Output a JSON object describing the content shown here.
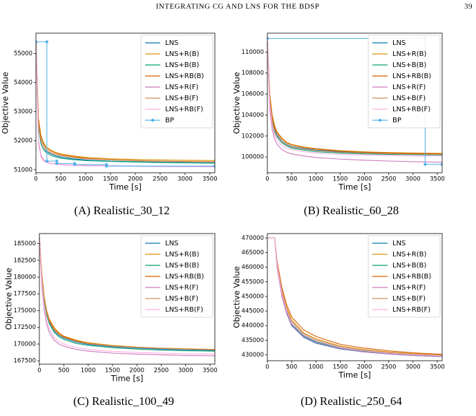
{
  "header": {
    "running_title": "INTEGRATING CG AND LNS FOR THE BDSP",
    "page_number": "39"
  },
  "chart_data": [
    {
      "type": "line",
      "caption": "(A) Realistic_30_12",
      "xlabel": "Time [s]",
      "ylabel": "Objective Value",
      "legend": "upper right",
      "xlim": [
        0,
        3600
      ],
      "xticks": [
        0,
        500,
        1000,
        1500,
        2000,
        2500,
        3000,
        3500
      ],
      "ylim": [
        50900,
        55700
      ],
      "yticks": [
        51000,
        52000,
        53000,
        54000,
        55000
      ],
      "x": [
        0,
        50,
        100,
        150,
        200,
        300,
        400,
        500,
        750,
        1000,
        1500,
        2000,
        2500,
        3000,
        3600
      ],
      "series": [
        {
          "name": "LNS",
          "color": "#0173b2",
          "values": [
            55400,
            52600,
            52000,
            51800,
            51650,
            51550,
            51480,
            51440,
            51380,
            51340,
            51300,
            51280,
            51260,
            51250,
            51240
          ]
        },
        {
          "name": "LNS+R(B)",
          "color": "#de8f05",
          "values": [
            55400,
            52800,
            52200,
            51950,
            51800,
            51680,
            51600,
            51550,
            51480,
            51430,
            51380,
            51360,
            51340,
            51330,
            51320
          ]
        },
        {
          "name": "LNS+B(B)",
          "color": "#029e73",
          "values": [
            55400,
            52500,
            51900,
            51700,
            51600,
            51500,
            51440,
            51400,
            51350,
            51320,
            51290,
            51270,
            51250,
            51240,
            51230
          ]
        },
        {
          "name": "LNS+RB(B)",
          "color": "#d55e00",
          "values": [
            55400,
            52700,
            52100,
            51900,
            51750,
            51640,
            51570,
            51520,
            51450,
            51400,
            51350,
            51320,
            51300,
            51290,
            51280
          ]
        },
        {
          "name": "LNS+R(F)",
          "color": "#cc78bc",
          "values": [
            55400,
            52000,
            51500,
            51350,
            51280,
            51220,
            51200,
            51180,
            51160,
            51150,
            51140,
            51130,
            51120,
            51115,
            51110
          ]
        },
        {
          "name": "LNS+B(F)",
          "color": "#ca9161",
          "values": [
            55400,
            52600,
            52000,
            51800,
            51680,
            51580,
            51520,
            51480,
            51420,
            51380,
            51340,
            51310,
            51290,
            51280,
            51270
          ]
        },
        {
          "name": "LNS+RB(F)",
          "color": "#fbafe4",
          "values": [
            55400,
            51900,
            51450,
            51320,
            51260,
            51210,
            51190,
            51170,
            51150,
            51140,
            51130,
            51120,
            51110,
            51105,
            51100
          ]
        },
        {
          "name": "BP",
          "color": "#56b4e9",
          "marker": true,
          "x": [
            0,
            220,
            220,
            420,
            420,
            780,
            780,
            1420,
            1420,
            3600
          ],
          "values": [
            55400,
            55400,
            51300,
            51300,
            51220,
            51220,
            51180,
            51180,
            51130,
            51130
          ]
        }
      ]
    },
    {
      "type": "line",
      "caption": "(B) Realistic_60_28",
      "xlabel": "Time [s]",
      "ylabel": "Objective Value",
      "legend": "upper right",
      "xlim": [
        0,
        3600
      ],
      "xticks": [
        0,
        500,
        1000,
        1500,
        2000,
        2500,
        3000,
        3500
      ],
      "ylim": [
        98500,
        111800
      ],
      "yticks": [
        100000,
        102000,
        104000,
        106000,
        108000,
        110000
      ],
      "x": [
        0,
        50,
        100,
        150,
        200,
        300,
        400,
        500,
        750,
        1000,
        1500,
        2000,
        2500,
        3000,
        3600
      ],
      "series": [
        {
          "name": "LNS",
          "color": "#0173b2",
          "values": [
            111000,
            105500,
            103500,
            102600,
            102100,
            101500,
            101200,
            101000,
            100800,
            100650,
            100500,
            100420,
            100360,
            100320,
            100300
          ]
        },
        {
          "name": "LNS+R(B)",
          "color": "#de8f05",
          "values": [
            111000,
            106000,
            104000,
            103000,
            102400,
            101800,
            101400,
            101200,
            100950,
            100800,
            100600,
            100500,
            100420,
            100380,
            100350
          ]
        },
        {
          "name": "LNS+B(B)",
          "color": "#029e73",
          "values": [
            111000,
            105200,
            103300,
            102400,
            101900,
            101350,
            101050,
            100850,
            100650,
            100500,
            100380,
            100300,
            100250,
            100220,
            100200
          ]
        },
        {
          "name": "LNS+RB(B)",
          "color": "#d55e00",
          "values": [
            111000,
            105800,
            103800,
            102800,
            102300,
            101700,
            101350,
            101150,
            100900,
            100750,
            100550,
            100450,
            100380,
            100340,
            100300
          ]
        },
        {
          "name": "LNS+R(F)",
          "color": "#cc78bc",
          "values": [
            111000,
            104500,
            102600,
            101700,
            101200,
            100700,
            100450,
            100300,
            100100,
            99950,
            99800,
            99700,
            99620,
            99560,
            99500
          ]
        },
        {
          "name": "LNS+B(F)",
          "color": "#ca9161",
          "values": [
            111000,
            105400,
            103400,
            102500,
            102000,
            101450,
            101150,
            100950,
            100750,
            100600,
            100450,
            100370,
            100310,
            100270,
            100250
          ]
        },
        {
          "name": "LNS+RB(F)",
          "color": "#fbafe4",
          "values": [
            111000,
            105000,
            103000,
            102100,
            101600,
            101100,
            100850,
            100700,
            100500,
            100380,
            100260,
            100190,
            100140,
            100110,
            100100
          ]
        },
        {
          "name": "BP",
          "color": "#56b4e9",
          "marker": true,
          "x": [
            0,
            3250,
            3250,
            3600
          ],
          "values": [
            111300,
            111300,
            99300,
            99300
          ]
        }
      ]
    },
    {
      "type": "line",
      "caption": "(C) Realistic_100_49",
      "xlabel": "Time [s]",
      "ylabel": "Objective Value",
      "legend": "upper right",
      "xlim": [
        0,
        3600
      ],
      "xticks": [
        0,
        500,
        1000,
        1500,
        2000,
        2500,
        3000,
        3500
      ],
      "ylim": [
        167000,
        186500
      ],
      "yticks": [
        167500,
        170000,
        172500,
        175000,
        177500,
        180000,
        182500,
        185000
      ],
      "x": [
        0,
        50,
        100,
        150,
        200,
        300,
        400,
        500,
        750,
        1000,
        1500,
        2000,
        2500,
        3000,
        3600
      ],
      "series": [
        {
          "name": "LNS",
          "color": "#0173b2",
          "values": [
            186000,
            180000,
            176500,
            174500,
            173300,
            172000,
            171300,
            170900,
            170300,
            169950,
            169600,
            169400,
            169250,
            169150,
            169050
          ]
        },
        {
          "name": "LNS+R(B)",
          "color": "#de8f05",
          "values": [
            186000,
            180500,
            177000,
            175000,
            173800,
            172500,
            171700,
            171200,
            170600,
            170200,
            169800,
            169550,
            169400,
            169300,
            169200
          ]
        },
        {
          "name": "LNS+B(B)",
          "color": "#029e73",
          "values": [
            186000,
            179800,
            176300,
            174300,
            173100,
            171800,
            171100,
            170700,
            170100,
            169800,
            169450,
            169250,
            169100,
            169000,
            168950
          ]
        },
        {
          "name": "LNS+RB(B)",
          "color": "#d55e00",
          "values": [
            186000,
            180300,
            176800,
            174800,
            173600,
            172300,
            171600,
            171100,
            170500,
            170100,
            169700,
            169500,
            169350,
            169250,
            169150
          ]
        },
        {
          "name": "LNS+R(F)",
          "color": "#cc78bc",
          "values": [
            186000,
            178500,
            175000,
            173000,
            171800,
            170600,
            170000,
            169700,
            169200,
            168950,
            168650,
            168500,
            168400,
            168300,
            168250
          ]
        },
        {
          "name": "LNS+B(F)",
          "color": "#ca9161",
          "values": [
            186000,
            180000,
            176600,
            174600,
            173400,
            172100,
            171400,
            171000,
            170400,
            170050,
            169700,
            169500,
            169350,
            169250,
            169150
          ]
        },
        {
          "name": "LNS+RB(F)",
          "color": "#fbafe4",
          "values": [
            186000,
            179000,
            175500,
            173500,
            172300,
            171000,
            170400,
            170000,
            169500,
            169200,
            168900,
            168750,
            168650,
            168550,
            168500
          ]
        }
      ]
    },
    {
      "type": "line",
      "caption": "(D) Realistic_250_64",
      "xlabel": "Time [s]",
      "ylabel": "Objective Value",
      "legend": "upper right",
      "xlim": [
        0,
        3600
      ],
      "xticks": [
        0,
        500,
        1000,
        1500,
        2000,
        2500,
        3000,
        3500
      ],
      "ylim": [
        428000,
        471500
      ],
      "yticks": [
        430000,
        435000,
        440000,
        445000,
        450000,
        455000,
        460000,
        465000,
        470000
      ],
      "x": [
        0,
        50,
        100,
        150,
        200,
        300,
        400,
        500,
        750,
        1000,
        1500,
        2000,
        2500,
        3000,
        3600
      ],
      "series": [
        {
          "name": "LNS",
          "color": "#0173b2",
          "values": [
            470000,
            470000,
            470000,
            470000,
            460000,
            450000,
            444000,
            440000,
            436000,
            434000,
            432000,
            431000,
            430300,
            429800,
            429400
          ]
        },
        {
          "name": "LNS+R(B)",
          "color": "#de8f05",
          "values": [
            470000,
            470000,
            470000,
            470000,
            461500,
            452000,
            446000,
            442000,
            437500,
            435500,
            433000,
            431800,
            431000,
            430400,
            430000
          ]
        },
        {
          "name": "LNS+B(B)",
          "color": "#029e73",
          "values": [
            470000,
            470000,
            470000,
            470000,
            460500,
            450500,
            444500,
            440500,
            436500,
            434500,
            432300,
            431200,
            430500,
            430000,
            429600
          ]
        },
        {
          "name": "LNS+RB(B)",
          "color": "#d55e00",
          "values": [
            470000,
            470000,
            470000,
            470000,
            462000,
            453000,
            447000,
            443000,
            438500,
            436300,
            433600,
            432300,
            431400,
            430700,
            430200
          ]
        },
        {
          "name": "LNS+R(F)",
          "color": "#cc78bc",
          "values": [
            470000,
            470000,
            470000,
            470000,
            460000,
            450000,
            444000,
            440200,
            436200,
            434200,
            432100,
            431000,
            430300,
            429800,
            429400
          ]
        },
        {
          "name": "LNS+B(F)",
          "color": "#ca9161",
          "values": [
            470000,
            470000,
            470000,
            470000,
            461000,
            451500,
            445500,
            441500,
            437200,
            435100,
            432800,
            431600,
            430800,
            430200,
            429800
          ]
        },
        {
          "name": "LNS+RB(F)",
          "color": "#fbafe4",
          "values": [
            470000,
            470000,
            470000,
            470000,
            460800,
            451000,
            445000,
            441000,
            436800,
            434800,
            432500,
            431400,
            430600,
            430100,
            429700
          ]
        }
      ]
    }
  ]
}
